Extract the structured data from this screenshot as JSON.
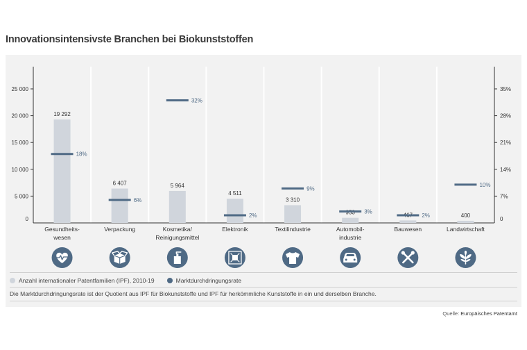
{
  "title": "Innovationsintensivste Branchen bei Biokunststoffen",
  "chart_data": {
    "type": "bar",
    "categories": [
      {
        "line1": "Gesundheits-",
        "line2": "wesen",
        "icon": "heart-pulse-icon"
      },
      {
        "line1": "Verpackung",
        "line2": "",
        "icon": "box-icon"
      },
      {
        "line1": "Kosmetika/",
        "line2": "Reinigungsmittel",
        "icon": "dispenser-bottle-icon"
      },
      {
        "line1": "Elektronik",
        "line2": "",
        "icon": "circuit-chip-icon"
      },
      {
        "line1": "Textilindustrie",
        "line2": "",
        "icon": "tshirt-icon"
      },
      {
        "line1": "Automobil-",
        "line2": "industrie",
        "icon": "car-icon"
      },
      {
        "line1": "Bauwesen",
        "line2": "",
        "icon": "tools-icon"
      },
      {
        "line1": "Landwirtschaft",
        "line2": "",
        "icon": "plant-icon"
      }
    ],
    "series": [
      {
        "name": "Anzahl internationaler Patentfamilien (IPF), 2010-19",
        "values": [
          19292,
          6407,
          5964,
          4511,
          3310,
          953,
          467,
          400
        ],
        "labels": [
          "19 292",
          "6 407",
          "5 964",
          "4 511",
          "3 310",
          "953",
          "467",
          "400"
        ],
        "color": "#d0d5dc"
      },
      {
        "name": "Marktdurchdringungsrate",
        "values": [
          18,
          6,
          32,
          2,
          9,
          3,
          2,
          10
        ],
        "labels": [
          "18%",
          "6%",
          "32%",
          "2%",
          "9%",
          "3%",
          "2%",
          "10%"
        ],
        "color": "#4f6a85"
      }
    ],
    "y_left": {
      "min": 0,
      "max": 25000,
      "ticks": [
        0,
        5000,
        10000,
        15000,
        20000,
        25000
      ],
      "tick_labels": [
        "0",
        "5 000",
        "10 000",
        "15 000",
        "20 000",
        "25 000"
      ]
    },
    "y_right": {
      "min": 0,
      "max": 35,
      "ticks": [
        0,
        7,
        14,
        21,
        28,
        35
      ],
      "tick_labels": [
        "0",
        "7%",
        "14%",
        "21%",
        "28%",
        "35%"
      ]
    },
    "icon_color": "#4f6a85"
  },
  "note": "Die Marktdurchdringungsrate ist der Quotient aus IPF für Biokunststoffe und IPF für herkömmliche Kunststoffe in ein und derselben Branche.",
  "source": {
    "label": "Quelle:",
    "value": "Europäisches Patentamt"
  }
}
